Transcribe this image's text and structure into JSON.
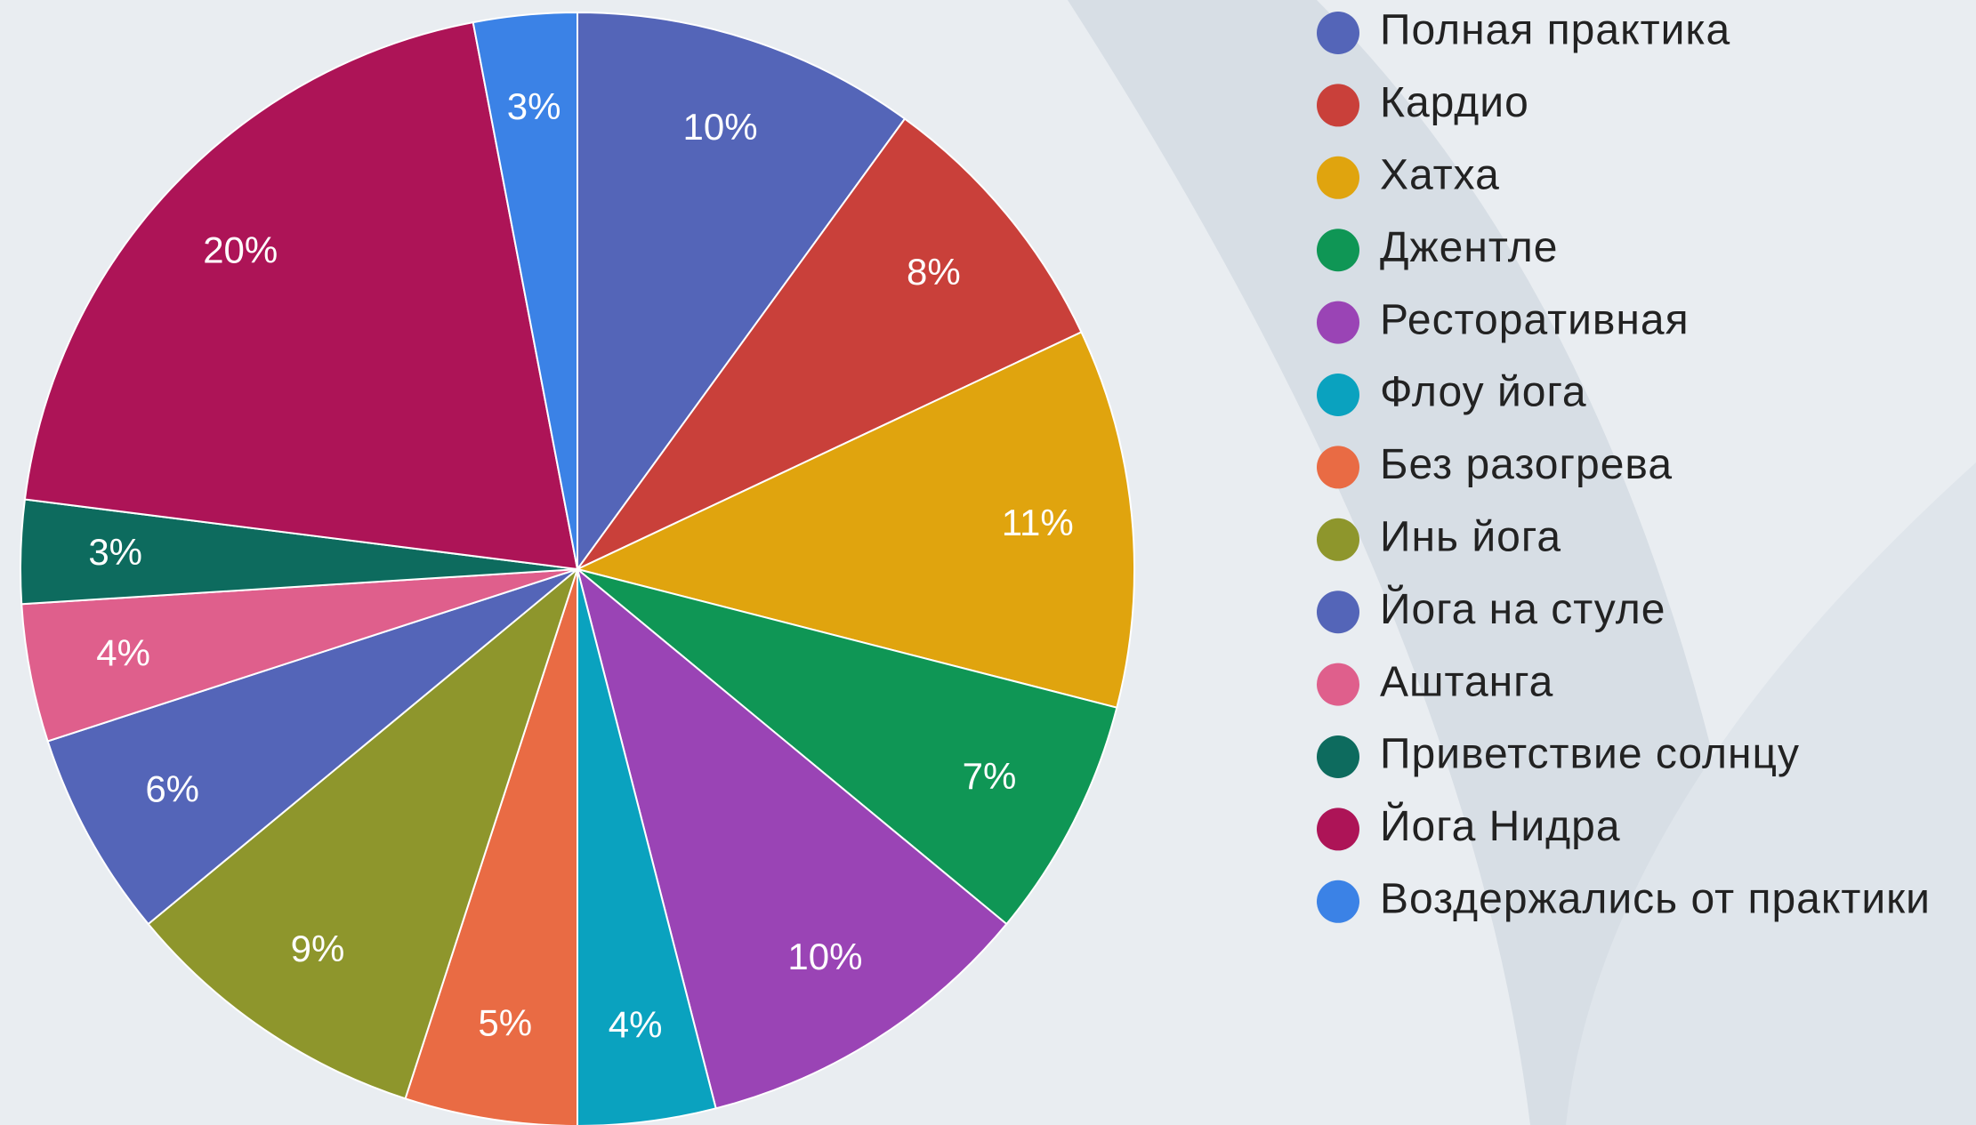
{
  "chart_data": {
    "type": "pie",
    "categories": [
      "Полная практика",
      "Кардио",
      "Хатха",
      "Джентле",
      "Ресторативная",
      "Флоу йога",
      "Без разогрева",
      "Инь йога",
      "Йога на стуле",
      "Аштанга",
      "Приветствие солнцу",
      "Йога Нидра",
      "Воздержались от практики"
    ],
    "values": [
      10,
      8,
      11,
      7,
      10,
      4,
      5,
      9,
      6,
      4,
      3,
      20,
      3
    ],
    "value_labels": [
      "10%",
      "8%",
      "11%",
      "7%",
      "10%",
      "4%",
      "5%",
      "9%",
      "6%",
      "4%",
      "3%",
      "20%",
      "3%"
    ],
    "colors": [
      "#5465b8",
      "#c9403a",
      "#e0a40e",
      "#0f9655",
      "#9a44b5",
      "#0aa2bf",
      "#e96b44",
      "#8e962c",
      "#5465b8",
      "#df5f8c",
      "#0d6b5e",
      "#ad1457",
      "#3b82e6"
    ],
    "legend": "right"
  }
}
